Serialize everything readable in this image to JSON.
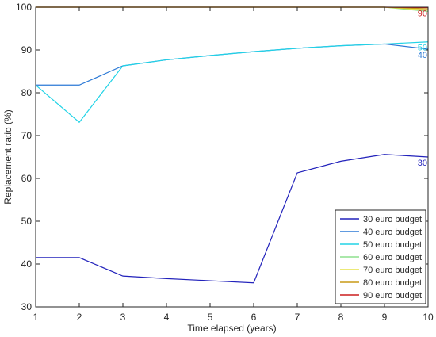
{
  "chart_data": {
    "type": "line",
    "title": "",
    "xlabel": "Time elapsed (years)",
    "ylabel": "Replacement ratio (%)",
    "xlim": [
      1,
      10
    ],
    "ylim": [
      30,
      100
    ],
    "xticks": [
      1,
      2,
      3,
      4,
      5,
      6,
      7,
      8,
      9,
      10
    ],
    "yticks": [
      30,
      40,
      50,
      60,
      70,
      80,
      90,
      100
    ],
    "grid": false,
    "legend_position": "bottom-right",
    "x": [
      1,
      2,
      3,
      4,
      5,
      6,
      7,
      8,
      9,
      10
    ],
    "series": [
      {
        "name": "30 euro budget",
        "color": "#2222bb",
        "end_label": "30",
        "values": [
          41.5,
          41.5,
          37.2,
          36.6,
          36.1,
          35.6,
          61.3,
          64.0,
          65.6,
          65.0
        ]
      },
      {
        "name": "40 euro budget",
        "color": "#2d7ad6",
        "end_label": "40",
        "values": [
          81.8,
          81.8,
          86.3,
          87.7,
          88.7,
          89.6,
          90.4,
          91.0,
          91.4,
          90.2
        ]
      },
      {
        "name": "50 euro budget",
        "color": "#22d3e6",
        "end_label": "50",
        "values": [
          81.8,
          73.1,
          86.3,
          87.7,
          88.7,
          89.6,
          90.4,
          91.0,
          91.4,
          91.9
        ]
      },
      {
        "name": "60 euro budget",
        "color": "#8de08d",
        "end_label": "",
        "values": [
          100,
          100,
          100,
          100,
          100,
          100,
          100,
          100,
          100,
          99.0
        ]
      },
      {
        "name": "70 euro budget",
        "color": "#e5e24a",
        "end_label": "",
        "values": [
          100,
          100,
          100,
          100,
          100,
          100,
          100,
          100,
          100,
          99.3
        ]
      },
      {
        "name": "80 euro budget",
        "color": "#c99a16",
        "end_label": "",
        "values": [
          100,
          100,
          100,
          100,
          100,
          100,
          100,
          100,
          100,
          99.6
        ]
      },
      {
        "name": "90 euro budget",
        "color": "#cc1f1f",
        "end_label": "90",
        "values": [
          100,
          100,
          100,
          100,
          100,
          100,
          100,
          100,
          100,
          99.9
        ]
      }
    ]
  }
}
